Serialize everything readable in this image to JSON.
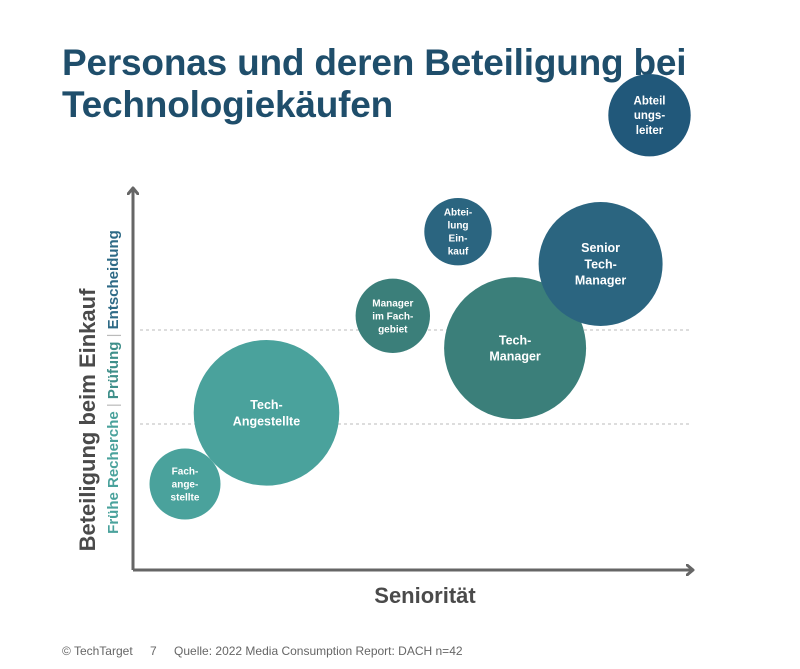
{
  "title": "Personas und deren Beteiligung bei Technologiekäufen",
  "footer": {
    "copyright": "© TechTarget",
    "page_number": "7",
    "source": "Quelle: 2022 Media Consumption Report: DACH n=42"
  },
  "chart_data": {
    "type": "bubble",
    "xlabel": "Seniorität",
    "ylabel": "Beteiligung beim Einkauf",
    "y_stages": [
      {
        "label": "Frühe Recherche",
        "color": "#4aa29c"
      },
      {
        "label": "Prüfung",
        "color": "#3f8f8a"
      },
      {
        "label": "Entscheidung",
        "color": "#2e6a86"
      }
    ],
    "stage_separator": "|",
    "grid": "dashed horizontal lines between stages",
    "points": [
      {
        "label": [
          "Fach-",
          "ange-",
          "stellte"
        ],
        "seniority": 1.0,
        "involvement": 1.0,
        "size": 1.0,
        "color": "#4aa29c"
      },
      {
        "label": [
          "Tech-",
          "Angestellte"
        ],
        "seniority": 2.0,
        "involvement": 1.55,
        "size": 4.2,
        "color": "#4aa29c"
      },
      {
        "label": [
          "Manager",
          "im Fach-",
          "gebiet"
        ],
        "seniority": 3.55,
        "involvement": 2.3,
        "size": 1.1,
        "color": "#3b7f7a"
      },
      {
        "label": [
          "Abtei-",
          "lung",
          "Ein-",
          "kauf"
        ],
        "seniority": 4.35,
        "involvement": 2.95,
        "size": 0.9,
        "color": "#2b6580"
      },
      {
        "label": [
          "Tech-",
          "Manager"
        ],
        "seniority": 5.05,
        "involvement": 2.05,
        "size": 4.0,
        "color": "#3b7f7a"
      },
      {
        "label": [
          "Senior",
          "Tech-",
          "Manager"
        ],
        "seniority": 6.1,
        "involvement": 2.7,
        "size": 3.05,
        "color": "#2b6580"
      },
      {
        "label": [
          "Abteil",
          "ungs-",
          "leiter"
        ],
        "seniority": 6.7,
        "involvement": 3.85,
        "size": 1.35,
        "color": "#21587a"
      }
    ]
  }
}
